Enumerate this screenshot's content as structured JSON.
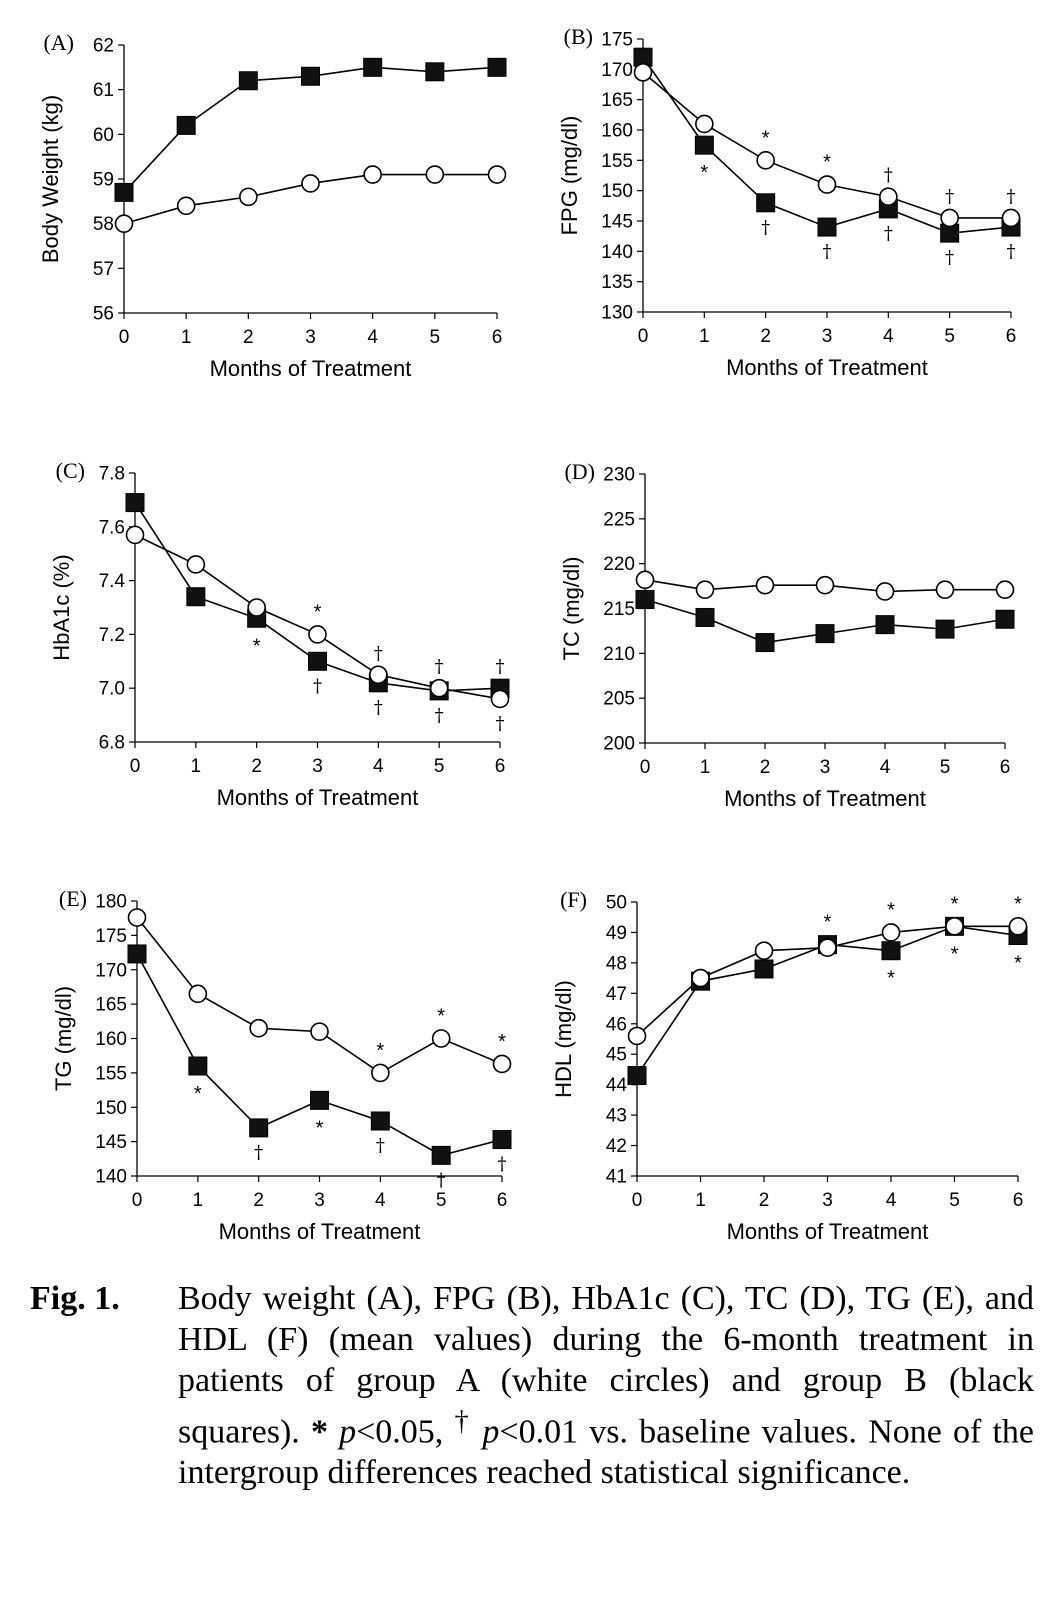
{
  "chart_data": [
    {
      "type": "line",
      "panel": "(A)",
      "ylabel": "Body Weight (kg)",
      "xlabel": "Months of Treatment",
      "x": [
        0,
        1,
        2,
        3,
        4,
        5,
        6
      ],
      "ylim": [
        56,
        62
      ],
      "yticks": [
        56,
        57,
        58,
        59,
        60,
        61,
        62
      ],
      "series": [
        {
          "marker": "square",
          "values": [
            58.7,
            60.2,
            61.2,
            61.3,
            61.5,
            61.4,
            61.5
          ],
          "annotations": [
            "",
            "",
            "",
            "",
            "",
            "",
            ""
          ]
        },
        {
          "marker": "circle",
          "values": [
            58.0,
            58.4,
            58.6,
            58.9,
            59.1,
            59.1,
            59.1
          ],
          "annotations": [
            "",
            "",
            "",
            "",
            "",
            "",
            ""
          ]
        }
      ]
    },
    {
      "type": "line",
      "panel": "(B)",
      "ylabel": "FPG (mg/dl)",
      "xlabel": "Months of Treatment",
      "x": [
        0,
        1,
        2,
        3,
        4,
        5,
        6
      ],
      "ylim": [
        130,
        175
      ],
      "yticks": [
        130,
        135,
        140,
        145,
        150,
        155,
        160,
        165,
        170,
        175
      ],
      "series": [
        {
          "marker": "square",
          "values": [
            172,
            157.5,
            148,
            144,
            147,
            143,
            144
          ],
          "annotations": [
            "",
            "*",
            "†",
            "†",
            "†",
            "†",
            "†"
          ]
        },
        {
          "marker": "circle",
          "values": [
            169.5,
            161,
            155,
            151,
            149,
            145.5,
            145.5
          ],
          "annotations": [
            "",
            "",
            "*",
            "*",
            "†",
            "†",
            "†"
          ]
        }
      ]
    },
    {
      "type": "line",
      "panel": "(C)",
      "ylabel": "HbA1c (%)",
      "xlabel": "Months of Treatment",
      "x": [
        0,
        1,
        2,
        3,
        4,
        5,
        6
      ],
      "ylim": [
        6.8,
        7.8
      ],
      "yticks": [
        "6.8",
        "7.0",
        "7.2",
        "7.4",
        "7.6",
        "7.8"
      ],
      "series": [
        {
          "marker": "square",
          "values": [
            7.69,
            7.34,
            7.26,
            7.1,
            7.02,
            6.99,
            7.0
          ],
          "annotations": [
            "",
            "",
            "*",
            "†",
            "†",
            "†",
            "†"
          ]
        },
        {
          "marker": "circle",
          "values": [
            7.57,
            7.46,
            7.3,
            7.2,
            7.05,
            7.0,
            6.96
          ],
          "annotations": [
            "",
            "",
            "",
            "*",
            "†",
            "†",
            "†"
          ]
        }
      ]
    },
    {
      "type": "line",
      "panel": "(D)",
      "ylabel": "TC (mg/dl)",
      "xlabel": "Months of Treatment",
      "x": [
        0,
        1,
        2,
        3,
        4,
        5,
        6
      ],
      "ylim": [
        200,
        230
      ],
      "yticks": [
        200,
        205,
        210,
        215,
        220,
        225,
        230
      ],
      "series": [
        {
          "marker": "square",
          "values": [
            216,
            214,
            211.2,
            212.2,
            213.2,
            212.7,
            213.8
          ],
          "annotations": [
            "",
            "",
            "",
            "",
            "",
            "",
            ""
          ]
        },
        {
          "marker": "circle",
          "values": [
            218.2,
            217.1,
            217.6,
            217.6,
            216.9,
            217.1,
            217.1
          ],
          "annotations": [
            "",
            "",
            "",
            "",
            "",
            "",
            ""
          ]
        }
      ]
    },
    {
      "type": "line",
      "panel": "(E)",
      "ylabel": "TG (mg/dl)",
      "xlabel": "Months of Treatment",
      "x": [
        0,
        1,
        2,
        3,
        4,
        5,
        6
      ],
      "ylim": [
        140,
        180
      ],
      "yticks": [
        140,
        145,
        150,
        155,
        160,
        165,
        170,
        175,
        180
      ],
      "series": [
        {
          "marker": "square",
          "values": [
            172.3,
            156,
            147,
            151,
            148,
            143,
            145.3
          ],
          "annotations": [
            "",
            "*",
            "†",
            "*",
            "†",
            "†",
            "†"
          ]
        },
        {
          "marker": "circle",
          "values": [
            177.6,
            166.5,
            161.5,
            161,
            155,
            160,
            156.3
          ],
          "annotations": [
            "",
            "",
            "",
            "",
            "*",
            "*",
            "*"
          ]
        }
      ]
    },
    {
      "type": "line",
      "panel": "(F)",
      "ylabel": "HDL (mg/dl)",
      "xlabel": "Months of Treatment",
      "x": [
        0,
        1,
        2,
        3,
        4,
        5,
        6
      ],
      "ylim": [
        41,
        50
      ],
      "yticks": [
        41,
        42,
        43,
        44,
        45,
        46,
        47,
        48,
        49,
        50
      ],
      "series": [
        {
          "marker": "square",
          "values": [
            44.3,
            47.4,
            47.8,
            48.6,
            48.4,
            49.2,
            48.9
          ],
          "annotations": [
            "",
            "",
            "",
            "*",
            "*",
            "*",
            "*"
          ]
        },
        {
          "marker": "circle",
          "values": [
            45.6,
            47.5,
            48.4,
            48.5,
            49.0,
            49.2,
            49.2
          ],
          "annotations": [
            "",
            "",
            "",
            "",
            "*",
            "*",
            "*"
          ]
        }
      ]
    }
  ],
  "caption": {
    "label": "Fig. 1.",
    "text": [
      "Body weight (A), FPG (B), HbA1c (C), TC (D), TG (E), and HDL (F) (mean values) during the 6-month treatment in patients of group A (white circles) and group B (black squares). ",
      "*",
      " ",
      "p",
      "<0.05, ",
      "†",
      " ",
      "p",
      "<0.01 vs. baseline values. None of the intergroup differences reached statistical significance."
    ]
  }
}
